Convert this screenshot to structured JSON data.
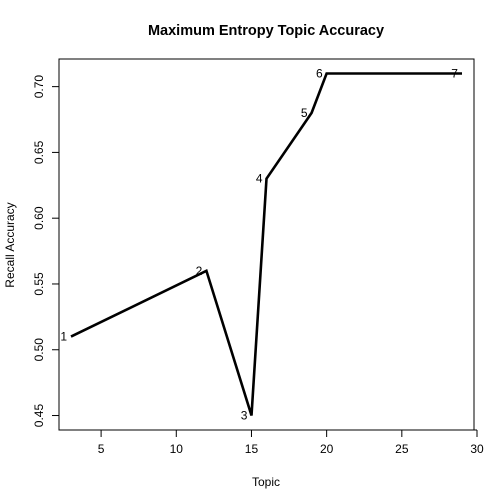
{
  "chart_data": {
    "type": "line",
    "title": "Maximum Entropy Topic Accuracy",
    "xlabel": "Topic",
    "ylabel": "Recall Accuracy",
    "xlim": [
      2.2,
      29.8
    ],
    "ylim": [
      0.439,
      0.721
    ],
    "x_ticks": [
      5,
      10,
      15,
      20,
      25,
      30
    ],
    "y_ticks": [
      0.45,
      0.5,
      0.55,
      0.6,
      0.65,
      0.7
    ],
    "x_tick_labels": [
      "5",
      "10",
      "15",
      "20",
      "25",
      "30"
    ],
    "y_tick_labels": [
      "0.45",
      "0.50",
      "0.55",
      "0.60",
      "0.65",
      "0.70"
    ],
    "grid": false,
    "legend": "none",
    "series": [
      {
        "color": "#000000",
        "points": [
          {
            "x": 3,
            "y": 0.51,
            "label": "1"
          },
          {
            "x": 12,
            "y": 0.56,
            "label": "2"
          },
          {
            "x": 15,
            "y": 0.45,
            "label": "3"
          },
          {
            "x": 16,
            "y": 0.63,
            "label": "4"
          },
          {
            "x": 19,
            "y": 0.68,
            "label": "5"
          },
          {
            "x": 20,
            "y": 0.71,
            "label": "6"
          },
          {
            "x": 29,
            "y": 0.71,
            "label": "7"
          }
        ]
      }
    ]
  }
}
